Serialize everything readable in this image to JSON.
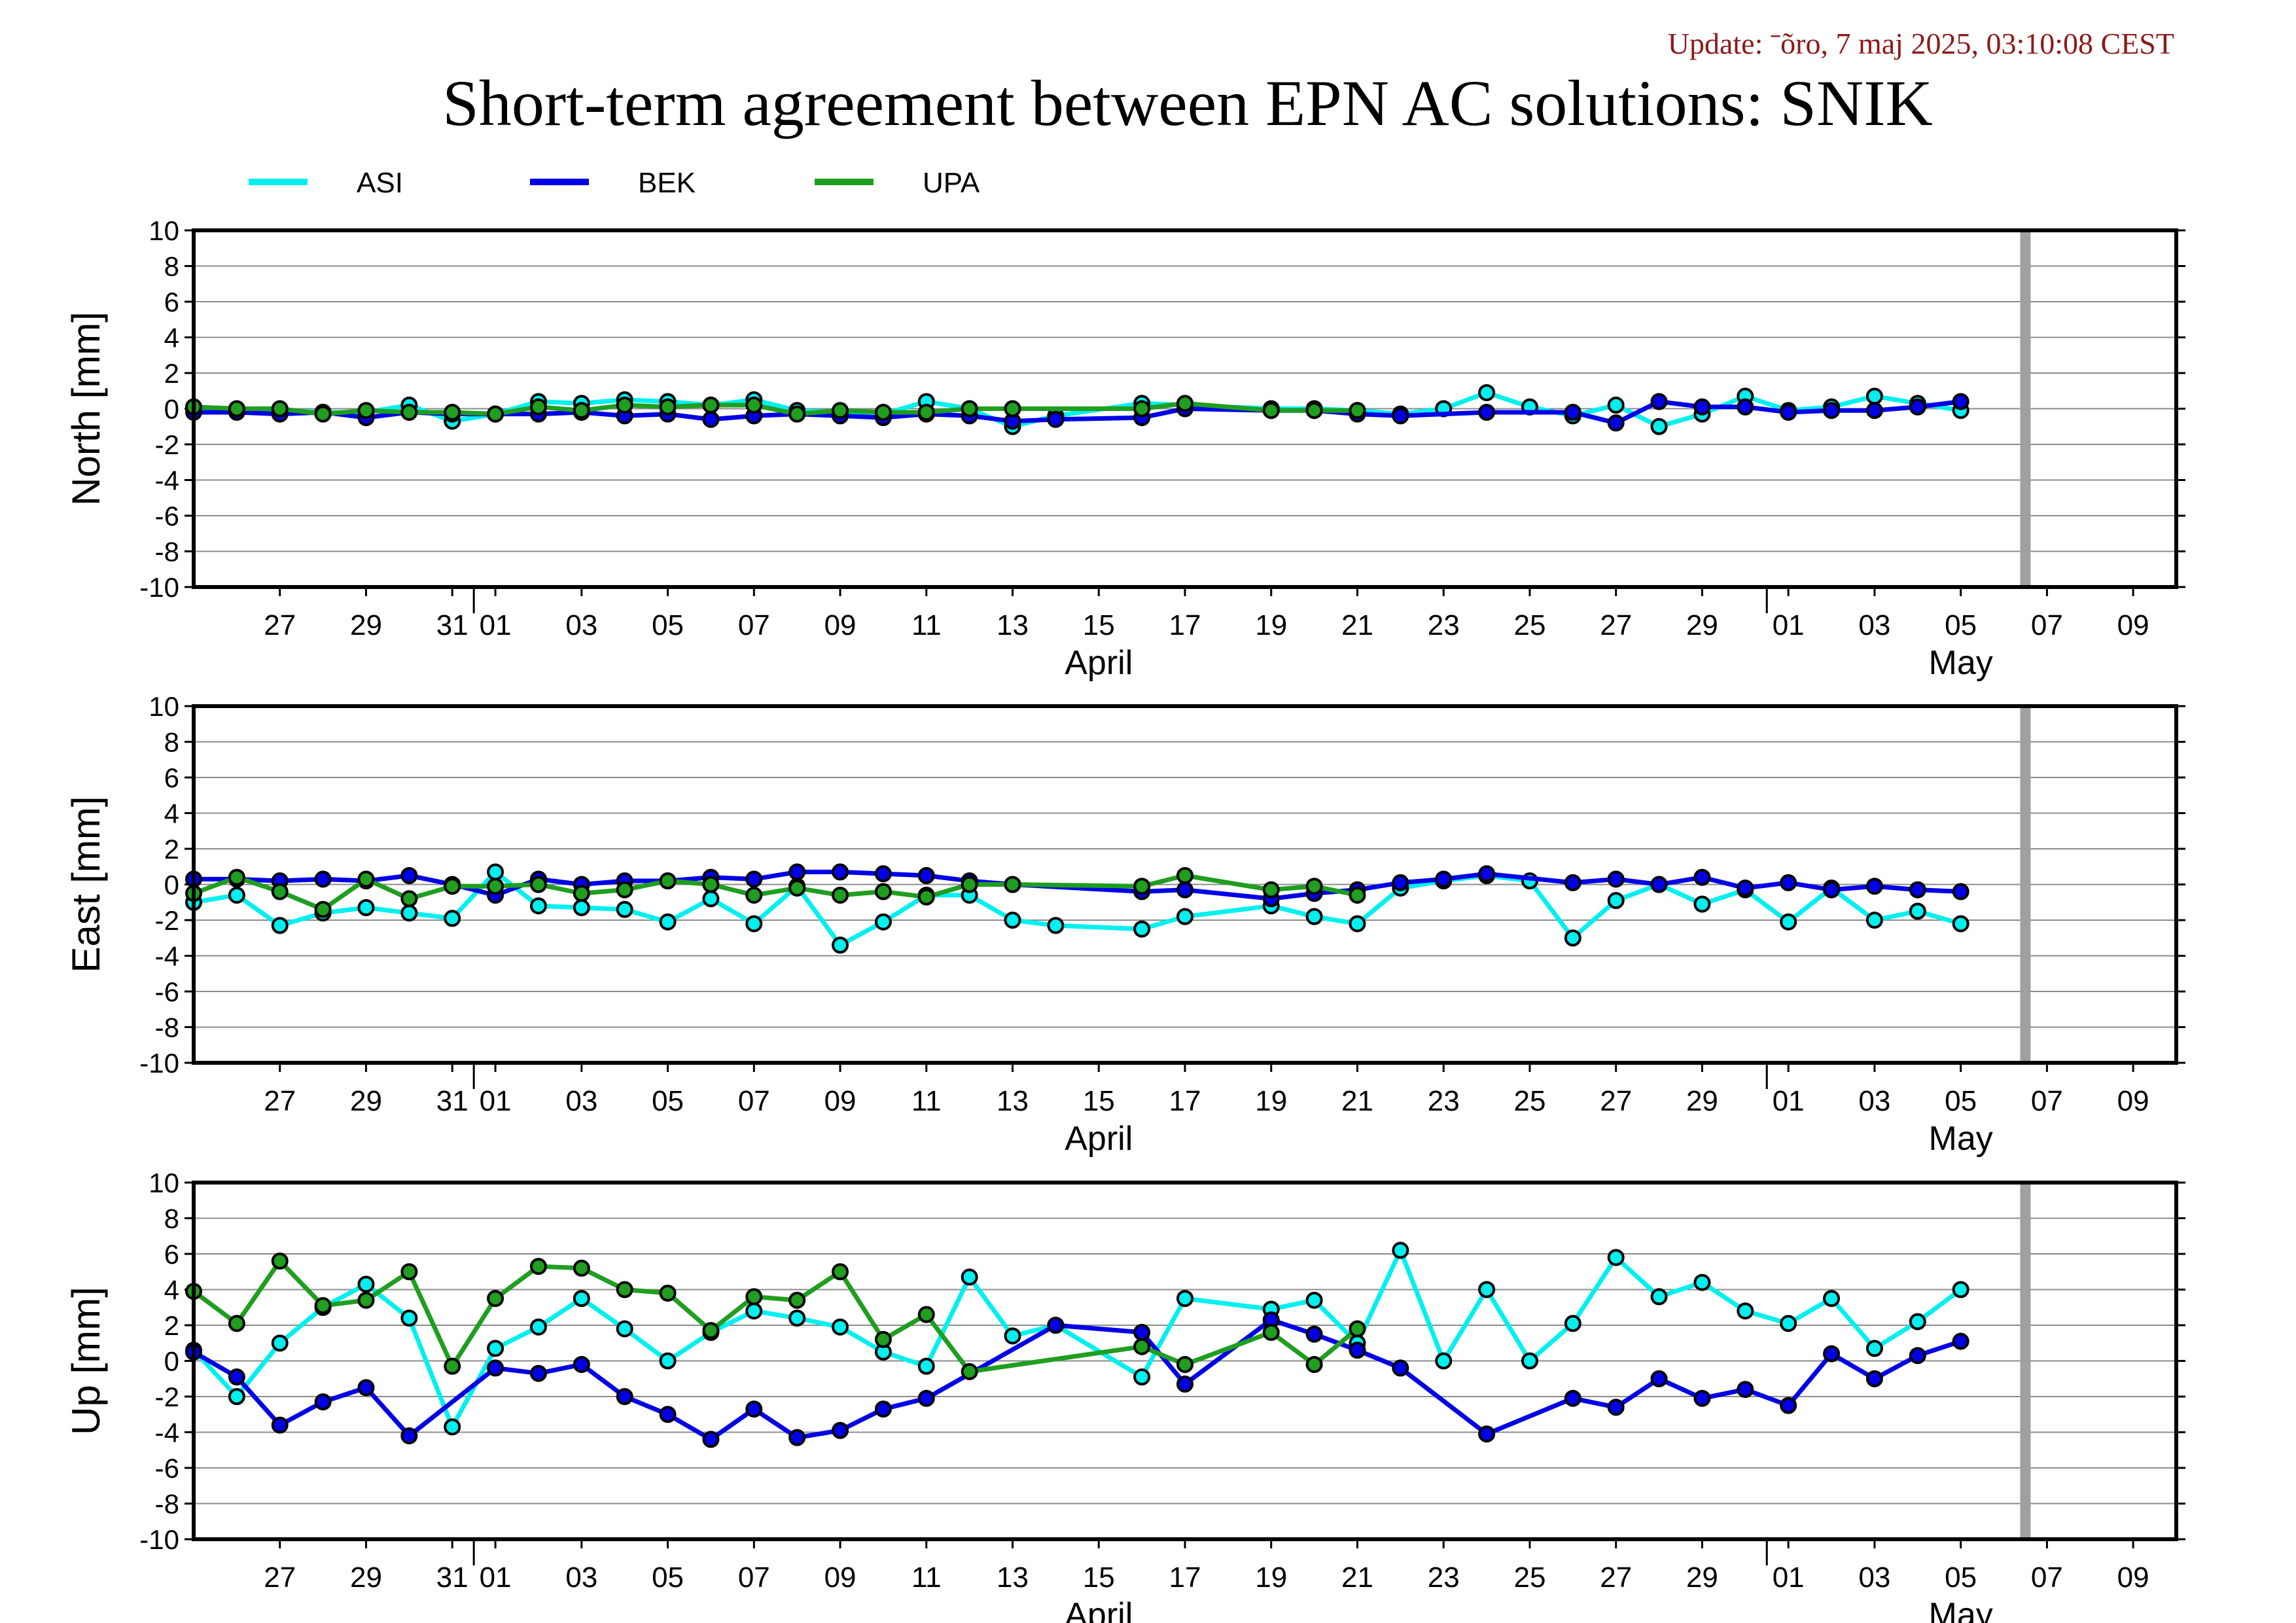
{
  "update_text": "Update: ˉõro, 7 maj 2025, 03:10:08 CEST",
  "title": "Short-term agreement between EPN AC solutions: SNIK",
  "colors": {
    "ASI": "#00f0f0",
    "BEK": "#0000e6",
    "UPA": "#1f9e1f",
    "grid": "#8c8c8c",
    "frame": "#000000",
    "today_bar": "#a0a0a0",
    "update": "#8b1a1a"
  },
  "chart_data": {
    "type": "line",
    "legend": [
      "ASI",
      "BEK",
      "UPA"
    ],
    "legend_placement": "top-left",
    "grid": true,
    "x_range": [
      "2025-03-25",
      "2025-05-10"
    ],
    "ylim": [
      -10,
      10
    ],
    "yticks": [
      10,
      8,
      6,
      4,
      2,
      0,
      -2,
      -4,
      -6,
      -8,
      -10
    ],
    "xtick_labels": [
      "27",
      "29",
      "31",
      "01",
      "03",
      "05",
      "07",
      "09",
      "11",
      "13",
      "15",
      "17",
      "19",
      "21",
      "23",
      "25",
      "27",
      "29",
      "01",
      "03",
      "05",
      "07",
      "09"
    ],
    "month_labels": [
      "April",
      "May"
    ],
    "today_marker": "2025-05-06",
    "panels": [
      {
        "ylabel": "North [mm]",
        "series": [
          {
            "name": "ASI",
            "x": [
              "2025-03-25",
              "2025-03-26",
              "2025-03-27",
              "2025-03-28",
              "2025-03-29",
              "2025-03-30",
              "2025-03-31",
              "2025-04-01",
              "2025-04-02",
              "2025-04-03",
              "2025-04-04",
              "2025-04-05",
              "2025-04-06",
              "2025-04-07",
              "2025-04-08",
              "2025-04-09",
              "2025-04-10",
              "2025-04-11",
              "2025-04-12",
              "2025-04-13",
              "2025-04-14",
              "2025-04-16",
              "2025-04-17",
              "2025-04-19",
              "2025-04-20",
              "2025-04-21",
              "2025-04-22",
              "2025-04-23",
              "2025-04-24",
              "2025-04-25",
              "2025-04-26",
              "2025-04-27",
              "2025-04-28",
              "2025-04-29",
              "2025-04-30",
              "2025-05-01",
              "2025-05-02",
              "2025-05-03",
              "2025-05-04",
              "2025-05-05"
            ],
            "values": [
              0.1,
              -0.1,
              -0.1,
              -0.2,
              -0.2,
              0.2,
              -0.7,
              -0.3,
              0.4,
              0.3,
              0.5,
              0.4,
              0.2,
              0.5,
              -0.1,
              -0.2,
              -0.3,
              0.4,
              0.0,
              -1.0,
              -0.4,
              0.3,
              0.2,
              0.0,
              0.0,
              -0.1,
              -0.3,
              0.0,
              0.9,
              0.1,
              -0.4,
              0.2,
              -1.0,
              -0.3,
              0.7,
              -0.1,
              0.1,
              0.7,
              0.3,
              -0.1
            ]
          },
          {
            "name": "BEK",
            "x": [
              "2025-03-25",
              "2025-03-26",
              "2025-03-27",
              "2025-03-28",
              "2025-03-29",
              "2025-03-30",
              "2025-03-31",
              "2025-04-01",
              "2025-04-02",
              "2025-04-03",
              "2025-04-04",
              "2025-04-05",
              "2025-04-06",
              "2025-04-07",
              "2025-04-08",
              "2025-04-09",
              "2025-04-10",
              "2025-04-11",
              "2025-04-12",
              "2025-04-13",
              "2025-04-14",
              "2025-04-16",
              "2025-04-17",
              "2025-04-19",
              "2025-04-20",
              "2025-04-21",
              "2025-04-22",
              "2025-04-24",
              "2025-04-26",
              "2025-04-27",
              "2025-04-28",
              "2025-04-29",
              "2025-04-30",
              "2025-05-01",
              "2025-05-02",
              "2025-05-03",
              "2025-05-04",
              "2025-05-05"
            ],
            "values": [
              -0.2,
              -0.2,
              -0.3,
              -0.2,
              -0.5,
              -0.2,
              -0.3,
              -0.3,
              -0.3,
              -0.2,
              -0.4,
              -0.3,
              -0.6,
              -0.4,
              -0.3,
              -0.4,
              -0.5,
              -0.3,
              -0.4,
              -0.7,
              -0.6,
              -0.5,
              0.0,
              -0.1,
              -0.1,
              -0.3,
              -0.4,
              -0.2,
              -0.2,
              -0.8,
              0.4,
              0.1,
              0.1,
              -0.2,
              -0.1,
              -0.1,
              0.1,
              0.4
            ]
          },
          {
            "name": "UPA",
            "x": [
              "2025-03-25",
              "2025-03-26",
              "2025-03-27",
              "2025-03-28",
              "2025-03-29",
              "2025-03-30",
              "2025-03-31",
              "2025-04-01",
              "2025-04-02",
              "2025-04-03",
              "2025-04-04",
              "2025-04-05",
              "2025-04-06",
              "2025-04-07",
              "2025-04-08",
              "2025-04-09",
              "2025-04-10",
              "2025-04-11",
              "2025-04-12",
              "2025-04-13",
              "2025-04-16",
              "2025-04-17",
              "2025-04-19",
              "2025-04-20",
              "2025-04-21"
            ],
            "values": [
              0.1,
              0.0,
              0.0,
              -0.3,
              -0.1,
              -0.2,
              -0.2,
              -0.3,
              0.1,
              -0.1,
              0.2,
              0.1,
              0.2,
              0.2,
              -0.3,
              -0.1,
              -0.2,
              -0.2,
              0.0,
              0.0,
              0.0,
              0.3,
              -0.1,
              -0.1,
              -0.1
            ]
          }
        ]
      },
      {
        "ylabel": "East [mm]",
        "series": [
          {
            "name": "ASI",
            "x": [
              "2025-03-25",
              "2025-03-26",
              "2025-03-27",
              "2025-03-28",
              "2025-03-29",
              "2025-03-30",
              "2025-03-31",
              "2025-04-01",
              "2025-04-02",
              "2025-04-03",
              "2025-04-04",
              "2025-04-05",
              "2025-04-06",
              "2025-04-07",
              "2025-04-08",
              "2025-04-09",
              "2025-04-10",
              "2025-04-11",
              "2025-04-12",
              "2025-04-13",
              "2025-04-14",
              "2025-04-16",
              "2025-04-17",
              "2025-04-19",
              "2025-04-20",
              "2025-04-21",
              "2025-04-22",
              "2025-04-23",
              "2025-04-24",
              "2025-04-25",
              "2025-04-26",
              "2025-04-27",
              "2025-04-28",
              "2025-04-29",
              "2025-04-30",
              "2025-05-01",
              "2025-05-02",
              "2025-05-03",
              "2025-05-04",
              "2025-05-05"
            ],
            "values": [
              -1.0,
              -0.6,
              -2.3,
              -1.6,
              -1.3,
              -1.6,
              -1.9,
              0.7,
              -1.2,
              -1.3,
              -1.4,
              -2.1,
              -0.8,
              -2.2,
              -0.1,
              -3.4,
              -2.1,
              -0.6,
              -0.6,
              -2.0,
              -2.3,
              -2.5,
              -1.8,
              -1.2,
              -1.8,
              -2.2,
              -0.2,
              0.2,
              0.5,
              0.2,
              -3.0,
              -0.9,
              0.0,
              -1.1,
              -0.3,
              -2.1,
              -0.2,
              -2.0,
              -1.5,
              -2.2
            ]
          },
          {
            "name": "BEK",
            "x": [
              "2025-03-25",
              "2025-03-26",
              "2025-03-27",
              "2025-03-28",
              "2025-03-29",
              "2025-03-30",
              "2025-03-31",
              "2025-04-01",
              "2025-04-02",
              "2025-04-03",
              "2025-04-04",
              "2025-04-05",
              "2025-04-06",
              "2025-04-07",
              "2025-04-08",
              "2025-04-09",
              "2025-04-10",
              "2025-04-11",
              "2025-04-12",
              "2025-04-13",
              "2025-04-16",
              "2025-04-17",
              "2025-04-19",
              "2025-04-20",
              "2025-04-21",
              "2025-04-22",
              "2025-04-23",
              "2025-04-24",
              "2025-04-26",
              "2025-04-27",
              "2025-04-28",
              "2025-04-29",
              "2025-04-30",
              "2025-05-01",
              "2025-05-02",
              "2025-05-03",
              "2025-05-04",
              "2025-05-05"
            ],
            "values": [
              0.3,
              0.3,
              0.2,
              0.3,
              0.2,
              0.5,
              0.0,
              -0.6,
              0.3,
              0.0,
              0.2,
              0.2,
              0.4,
              0.3,
              0.7,
              0.7,
              0.6,
              0.5,
              0.2,
              0.0,
              -0.4,
              -0.3,
              -0.8,
              -0.5,
              -0.3,
              0.1,
              0.3,
              0.6,
              0.1,
              0.3,
              0.0,
              0.4,
              -0.2,
              0.1,
              -0.3,
              -0.1,
              -0.3,
              -0.4
            ]
          },
          {
            "name": "UPA",
            "x": [
              "2025-03-25",
              "2025-03-26",
              "2025-03-27",
              "2025-03-28",
              "2025-03-29",
              "2025-03-30",
              "2025-03-31",
              "2025-04-01",
              "2025-04-02",
              "2025-04-03",
              "2025-04-04",
              "2025-04-05",
              "2025-04-06",
              "2025-04-07",
              "2025-04-08",
              "2025-04-09",
              "2025-04-10",
              "2025-04-11",
              "2025-04-12",
              "2025-04-13",
              "2025-04-16",
              "2025-04-17",
              "2025-04-19",
              "2025-04-20",
              "2025-04-21"
            ],
            "values": [
              -0.5,
              0.4,
              -0.4,
              -1.4,
              0.3,
              -0.8,
              -0.1,
              -0.1,
              0.0,
              -0.5,
              -0.3,
              0.2,
              0.0,
              -0.6,
              -0.2,
              -0.6,
              -0.4,
              -0.7,
              0.0,
              0.0,
              -0.1,
              0.5,
              -0.3,
              -0.1,
              -0.6
            ]
          }
        ]
      },
      {
        "ylabel": "Up [mm]",
        "series": [
          {
            "name": "ASI",
            "x": [
              "2025-03-25",
              "2025-03-26",
              "2025-03-27",
              "2025-03-28",
              "2025-03-29",
              "2025-03-30",
              "2025-03-31",
              "2025-04-01",
              "2025-04-02",
              "2025-04-03",
              "2025-04-04",
              "2025-04-05",
              "2025-04-06",
              "2025-04-07",
              "2025-04-08",
              "2025-04-09",
              "2025-04-10",
              "2025-04-11",
              "2025-04-12",
              "2025-04-13",
              "2025-04-14",
              "2025-04-16",
              "2025-04-17",
              "2025-04-19",
              "2025-04-20",
              "2025-04-21",
              "2025-04-22",
              "2025-04-23",
              "2025-04-24",
              "2025-04-25",
              "2025-04-26",
              "2025-04-27",
              "2025-04-28",
              "2025-04-29",
              "2025-04-30",
              "2025-05-01",
              "2025-05-02",
              "2025-05-03",
              "2025-05-04",
              "2025-05-05"
            ],
            "values": [
              0.6,
              -2.0,
              1.0,
              3.0,
              4.3,
              2.4,
              -3.7,
              0.7,
              1.9,
              3.5,
              1.8,
              0.0,
              1.6,
              2.8,
              2.4,
              1.9,
              0.5,
              -0.3,
              4.7,
              1.4,
              2.0,
              -0.9,
              3.5,
              2.9,
              3.4,
              1.0,
              6.2,
              0.0,
              4.0,
              0.0,
              2.1,
              5.8,
              3.6,
              4.4,
              2.8,
              2.1,
              3.5,
              0.7,
              2.2,
              4.0
            ]
          },
          {
            "name": "BEK",
            "x": [
              "2025-03-25",
              "2025-03-26",
              "2025-03-27",
              "2025-03-28",
              "2025-03-29",
              "2025-03-30",
              "2025-04-01",
              "2025-04-02",
              "2025-04-03",
              "2025-04-04",
              "2025-04-05",
              "2025-04-06",
              "2025-04-07",
              "2025-04-08",
              "2025-04-09",
              "2025-04-10",
              "2025-04-11",
              "2025-04-14",
              "2025-04-16",
              "2025-04-17",
              "2025-04-19",
              "2025-04-20",
              "2025-04-21",
              "2025-04-22",
              "2025-04-24",
              "2025-04-26",
              "2025-04-27",
              "2025-04-28",
              "2025-04-29",
              "2025-04-30",
              "2025-05-01",
              "2025-05-02",
              "2025-05-03",
              "2025-05-04",
              "2025-05-05"
            ],
            "values": [
              0.5,
              -0.9,
              -3.6,
              -2.3,
              -1.5,
              -4.2,
              -0.4,
              -0.7,
              -0.2,
              -2.0,
              -3.0,
              -4.4,
              -2.7,
              -4.3,
              -3.9,
              -2.7,
              -2.1,
              2.0,
              1.6,
              -1.3,
              2.3,
              1.5,
              0.6,
              -0.4,
              -4.1,
              -2.1,
              -2.6,
              -1.0,
              -2.1,
              -1.6,
              -2.5,
              0.4,
              -1.0,
              0.3,
              1.1
            ]
          },
          {
            "name": "UPA",
            "x": [
              "2025-03-25",
              "2025-03-26",
              "2025-03-27",
              "2025-03-28",
              "2025-03-29",
              "2025-03-30",
              "2025-03-31",
              "2025-04-01",
              "2025-04-02",
              "2025-04-03",
              "2025-04-04",
              "2025-04-05",
              "2025-04-06",
              "2025-04-07",
              "2025-04-08",
              "2025-04-09",
              "2025-04-10",
              "2025-04-11",
              "2025-04-12",
              "2025-04-16",
              "2025-04-17",
              "2025-04-19",
              "2025-04-20",
              "2025-04-21"
            ],
            "values": [
              3.9,
              2.1,
              5.6,
              3.1,
              3.4,
              5.0,
              -0.3,
              3.5,
              5.3,
              5.2,
              4.0,
              3.8,
              1.7,
              3.6,
              3.4,
              5.0,
              1.2,
              2.6,
              -0.6,
              0.8,
              -0.2,
              1.6,
              -0.2,
              1.8
            ]
          }
        ]
      }
    ]
  }
}
